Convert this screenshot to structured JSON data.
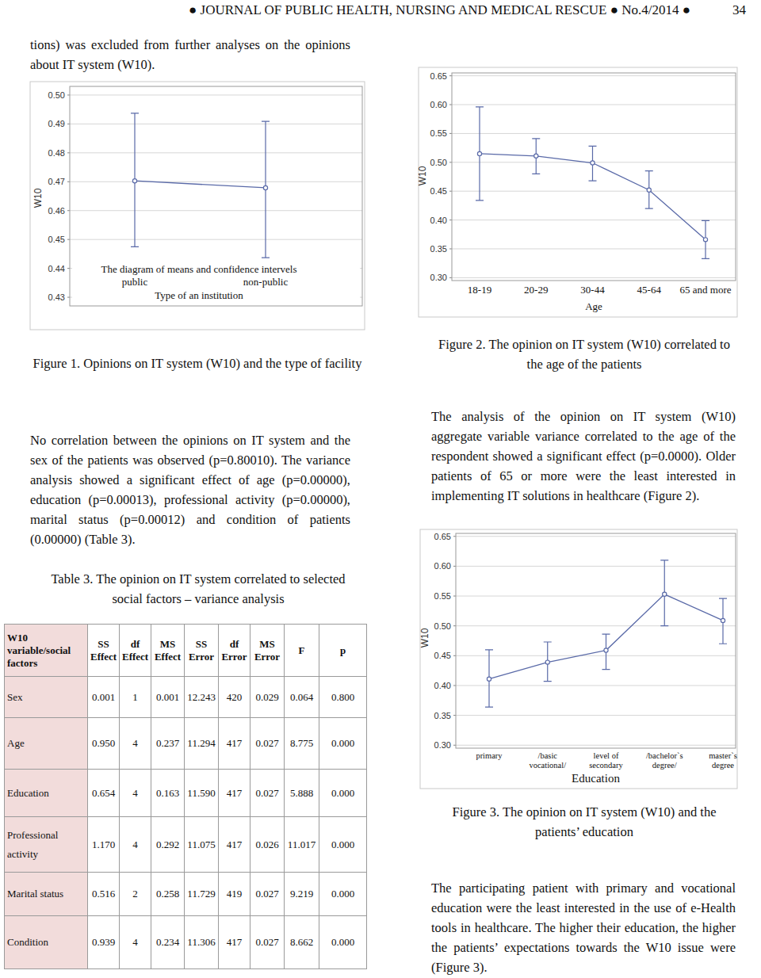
{
  "header": {
    "journal": "● JOURNAL OF PUBLIC HEALTH, NURSING AND MEDICAL RESCUE ● No.4/2014 ●",
    "page": "34"
  },
  "paragraphs": [
    "tions) was excluded from further analyses on the opinions about IT system (W10).",
    "No correlation between the opinions on IT system and the sex of the patients was observed (p=0.80010). The variance analysis showed a significant effect of age (p=0.00000), education (p=0.00013), professional activity (p=0.00000), marital status (p=0.00012) and condition of patients (0.00000) (Table 3).",
    "The analysis of the opinion on IT system (W10) aggregate variable variance correlated to the age of the respondent showed a significant effect (p=0.0000). Older patients of 65 or more were the least interested in implementing IT solutions in healthcare (Figure 2).",
    "The participating patient with primary and vocational education were the least interested in the use of e-Health tools in healthcare. The higher their education, the higher the patients’ expectations towards the W10 issue were (Figure 3)."
  ],
  "captions": [
    "Figure 1. Opinions on IT system (W10) and the type of facility",
    "Figure 2. The opinion on IT system (W10) correlated to the age of the patients",
    "Figure 3. The opinion on IT system (W10) and the patients’ education"
  ],
  "chart_data": [
    {
      "type": "line",
      "title": "The diagram of means and confidence intervels",
      "categories": [
        "public",
        "non-public"
      ],
      "x_label": "Type of an institution",
      "y_label": "W10",
      "series": [
        {
          "color": "#5a6aa8",
          "marker": "circle",
          "values": [
            0.4703,
            0.4679
          ],
          "ci_low": [
            0.4475,
            0.4437
          ],
          "ci_high": [
            0.4937,
            0.4909
          ]
        }
      ],
      "ylim": [
        0.427,
        0.503
      ],
      "yticks": [
        0.43,
        0.44,
        0.45,
        0.46,
        0.47,
        0.48,
        0.49,
        {
          "value": 0.5,
          "label": "0.50"
        }
      ],
      "grid": true
    },
    {
      "type": "line",
      "categories": [
        "18-19",
        "20-29",
        "30-44",
        "45-64",
        "65 and more"
      ],
      "x_label": "Age",
      "y_label": "W10",
      "series": [
        {
          "color": "#5a6aa8",
          "marker": "circle",
          "values": [
            0.515,
            0.511,
            0.499,
            0.452,
            0.366
          ],
          "ci_low": [
            0.434,
            0.48,
            0.468,
            0.42,
            0.333
          ],
          "ci_high": [
            0.596,
            0.541,
            0.528,
            0.485,
            0.399
          ]
        }
      ],
      "ylim": [
        0.295,
        0.655
      ],
      "yticks": [
        {
          "value": 0.3,
          "label": "0.30"
        },
        0.35,
        {
          "value": 0.4,
          "label": "0.40"
        },
        0.45,
        {
          "value": 0.5,
          "label": "0.50"
        },
        0.55,
        {
          "value": 0.6,
          "label": "0.60"
        },
        0.65
      ],
      "grid": true
    },
    {
      "type": "line",
      "categories": [
        "primary",
        "/basic vocational/",
        "level of secondary",
        "/bachelor`s degree/",
        "master`s degree"
      ],
      "x_label": "Education",
      "y_label": "W10",
      "series": [
        {
          "color": "#5a6aa8",
          "marker": "circle",
          "values": [
            0.411,
            0.439,
            0.459,
            0.553,
            0.509
          ],
          "ci_low": [
            0.364,
            0.407,
            0.427,
            0.5,
            0.47
          ],
          "ci_high": [
            0.46,
            0.473,
            0.486,
            0.61,
            0.546
          ]
        }
      ],
      "ylim": [
        0.295,
        0.655
      ],
      "yticks": [
        {
          "value": 0.3,
          "label": "0.30"
        },
        0.35,
        {
          "value": 0.4,
          "label": "0.40"
        },
        0.45,
        {
          "value": 0.5,
          "label": "0.50"
        },
        0.55,
        {
          "value": 0.6,
          "label": "0.60"
        },
        0.65
      ],
      "grid": true
    }
  ],
  "table": {
    "caption": "Table 3. The opinion on IT system correlated to selected social factors – variance analysis",
    "header": [
      "W10 variable/social factors",
      "SS Effect",
      "df Effect",
      "MS Effect",
      "SS Error",
      "df Error",
      "MS Error",
      "F",
      "p"
    ],
    "rows": [
      [
        "Sex",
        "0.001",
        "1",
        "0.001",
        "12.243",
        "420",
        "0.029",
        "0.064",
        "0.800"
      ],
      [
        "Age",
        "0.950",
        "4",
        "0.237",
        "11.294",
        "417",
        "0.027",
        "8.775",
        "0.000"
      ],
      [
        "Education",
        "0.654",
        "4",
        "0.163",
        "11.590",
        "417",
        "0.027",
        "5.888",
        "0.000"
      ],
      [
        "Professional activity",
        "1.170",
        "4",
        "0.292",
        "11.075",
        "417",
        "0.026",
        "11.017",
        "0.000"
      ],
      [
        "Marital status",
        "0.516",
        "2",
        "0.258",
        "11.729",
        "419",
        "0.027",
        "9.219",
        "0.000"
      ],
      [
        "Condition",
        "0.939",
        "4",
        "0.234",
        "11.306",
        "417",
        "0.027",
        "8.662",
        "0.000"
      ]
    ]
  }
}
